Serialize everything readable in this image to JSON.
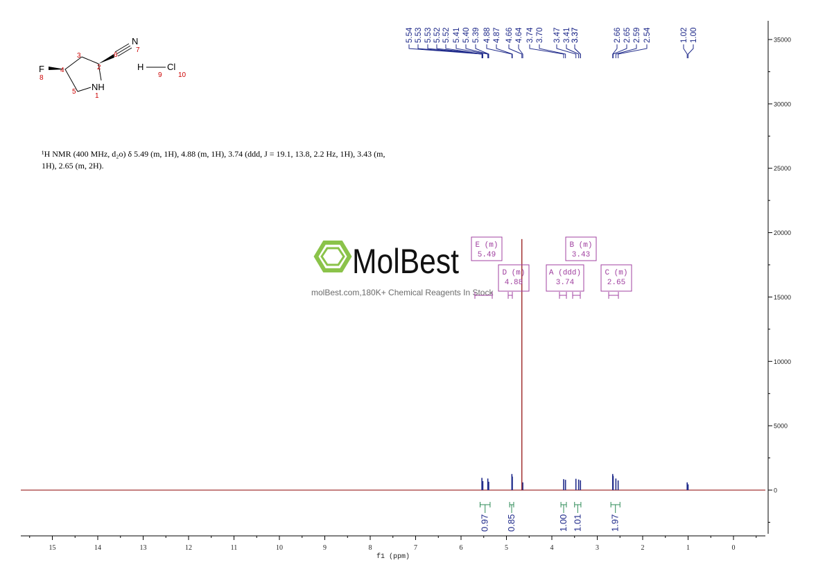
{
  "description": {
    "line1": "¹H NMR (400 MHz, d₂o) δ 5.49 (m, 1H), 4.88 (m, 1H), 3.74 (ddd, J = 19.1, 13.8, 2.2 Hz, 1H), 3.43 (m,",
    "line2": "1H), 2.65 (m, 2H)."
  },
  "watermark": {
    "brand": "MolBest",
    "tagline": "molBest.com,180K+ Chemical Reagents In Stock"
  },
  "molecule": {
    "atoms": [
      {
        "label": "F",
        "num": "8"
      },
      {
        "label": "NH",
        "num": "1"
      },
      {
        "label": "N",
        "num": "7"
      },
      {
        "label": "H",
        "num": "9"
      },
      {
        "label": "Cl",
        "num": "10"
      }
    ],
    "numbers": [
      "2",
      "3",
      "4",
      "5",
      "6"
    ]
  },
  "peak_labels": [
    "5.54",
    "5.53",
    "5.53",
    "5.52",
    "5.52",
    "5.41",
    "5.40",
    "5.39",
    "4.88",
    "4.87",
    "4.66",
    "4.64",
    "3.74",
    "3.70",
    "3.47",
    "3.41",
    "3.37",
    "3.37",
    "2.66",
    "2.65",
    "2.59",
    "2.54",
    "1.02",
    "1.00"
  ],
  "multiplets": [
    {
      "name": "E (m)",
      "shift": "5.49"
    },
    {
      "name": "D (m)",
      "shift": "4.88"
    },
    {
      "name": "A (ddd)",
      "shift": "3.74"
    },
    {
      "name": "B (m)",
      "shift": "3.43"
    },
    {
      "name": "C (m)",
      "shift": "2.65"
    }
  ],
  "integrals": [
    {
      "value": "0.97",
      "from": 5.58,
      "to": 5.36
    },
    {
      "value": "0.85",
      "from": 4.93,
      "to": 4.84
    },
    {
      "value": "1.00",
      "from": 3.8,
      "to": 3.68
    },
    {
      "value": "1.01",
      "from": 3.5,
      "to": 3.36
    },
    {
      "value": "1.97",
      "from": 2.7,
      "to": 2.5
    }
  ],
  "colors": {
    "spectrum": "#8b0000",
    "peak_label": "#1f2a8a",
    "multiplet_box": "#a040a0",
    "integral": "#2e8b57",
    "watermark_green": "#8bc34a",
    "atom_number": "#cc0000"
  },
  "chart_data": {
    "type": "line",
    "xlabel": "f1 (ppm)",
    "ylabel": "",
    "x_reversed": true,
    "xlim": [
      15.5,
      -0.7
    ],
    "ylim": [
      -3500,
      36000
    ],
    "x_ticks": [
      "15",
      "14",
      "13",
      "12",
      "11",
      "10",
      "9",
      "8",
      "7",
      "6",
      "5",
      "4",
      "3",
      "2",
      "1",
      "0"
    ],
    "y_ticks": [
      "35000",
      "30000",
      "25000",
      "20000",
      "15000",
      "10000",
      "5000",
      "0"
    ],
    "series": [
      {
        "peaks": [
          {
            "x": 5.54,
            "y": 950
          },
          {
            "x": 5.52,
            "y": 700
          },
          {
            "x": 5.41,
            "y": 900
          },
          {
            "x": 5.39,
            "y": 650
          },
          {
            "x": 4.88,
            "y": 1250
          },
          {
            "x": 4.87,
            "y": 1050
          },
          {
            "x": 4.66,
            "y": 19500
          },
          {
            "x": 4.64,
            "y": 600
          },
          {
            "x": 3.74,
            "y": 850
          },
          {
            "x": 3.7,
            "y": 800
          },
          {
            "x": 3.47,
            "y": 880
          },
          {
            "x": 3.41,
            "y": 820
          },
          {
            "x": 3.37,
            "y": 760
          },
          {
            "x": 2.66,
            "y": 1250
          },
          {
            "x": 2.65,
            "y": 1100
          },
          {
            "x": 2.59,
            "y": 900
          },
          {
            "x": 2.54,
            "y": 750
          },
          {
            "x": 1.02,
            "y": 600
          },
          {
            "x": 1.0,
            "y": 450
          }
        ]
      }
    ]
  }
}
